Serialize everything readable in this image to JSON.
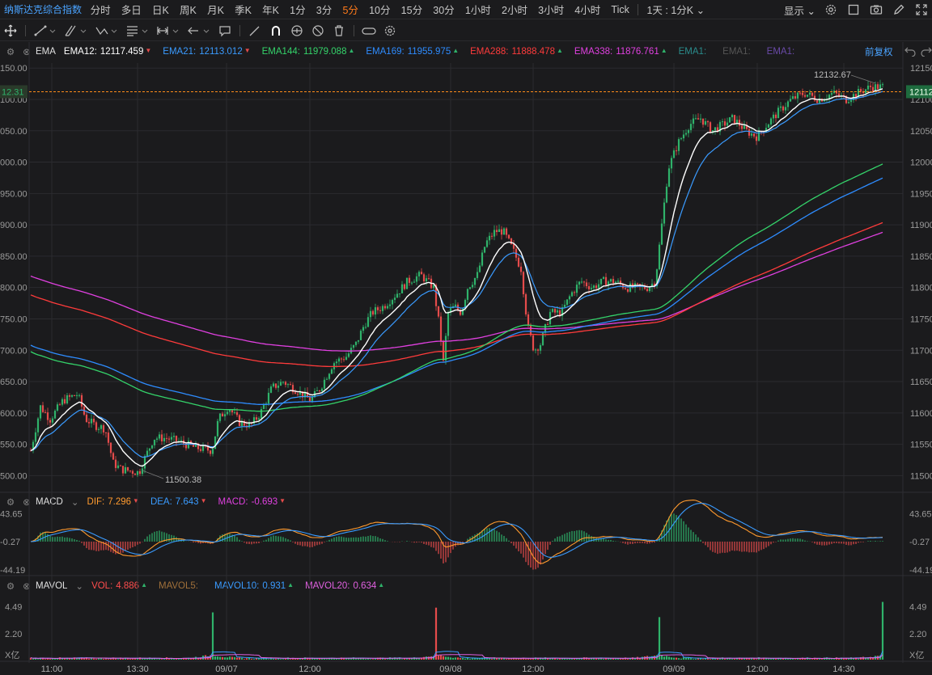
{
  "header": {
    "symbol": "纳斯达克综合指数",
    "periods": [
      "分时",
      "多日",
      "日K",
      "周K",
      "月K",
      "季K",
      "年K",
      "1分",
      "3分",
      "5分",
      "10分",
      "15分",
      "30分",
      "1小时",
      "2小时",
      "3小时",
      "4小时",
      "Tick"
    ],
    "active_period": "5分",
    "period_select": "1天 : 1分K",
    "show_label": "显示",
    "icons": [
      "gear-icon",
      "square-icon",
      "camera-icon",
      "pencil-icon",
      "fullscreen-icon"
    ]
  },
  "toolbar": {
    "tools": [
      "crosshair-icon",
      "line-tool-icon",
      "channel-tool-icon",
      "pattern-tool-icon",
      "text-tool-icon",
      "measure-tool-icon",
      "arrow-tool-icon",
      "comment-icon",
      "brush-icon",
      "magnet-icon",
      "eye-icon",
      "hide-icon",
      "trash-icon",
      "link-icon",
      "settings-icon"
    ]
  },
  "main_legend": {
    "indicator": "EMA",
    "items": [
      {
        "label": "EMA12:",
        "value": "12117.459",
        "color": "#ffffff",
        "dir": "down"
      },
      {
        "label": "EMA21:",
        "value": "12113.012",
        "color": "#3a9bff",
        "dir": "down"
      },
      {
        "label": "EMA144:",
        "value": "11979.088",
        "color": "#34d36a",
        "dir": "up"
      },
      {
        "label": "EMA169:",
        "value": "11955.975",
        "color": "#2e8cff",
        "dir": "up"
      },
      {
        "label": "EMA288:",
        "value": "11888.478",
        "color": "#ff3b3b",
        "dir": "up"
      },
      {
        "label": "EMA338:",
        "value": "11876.761",
        "color": "#e040e0",
        "dir": "up"
      }
    ],
    "extra": [
      {
        "label": "EMA1:",
        "color": "#2a8c8c"
      },
      {
        "label": "EMA1:",
        "color": "#555555"
      },
      {
        "label": "EMA1:",
        "color": "#6a4aa8"
      }
    ],
    "adjust_label": "前复权"
  },
  "price_axis": {
    "ticks": [
      "12150.00",
      "12100.00",
      "12050.00",
      "12000.00",
      "11950.00",
      "11900.00",
      "11850.00",
      "11800.00",
      "11750.00",
      "11700.00",
      "11650.00",
      "11600.00",
      "11550.00",
      "11500.00"
    ],
    "current_price": "12112.31",
    "high_label": "12132.67",
    "low_label": "11500.38"
  },
  "macd_legend": {
    "indicator": "MACD",
    "items": [
      {
        "label": "DIF:",
        "value": "7.296",
        "color": "#ff9a2e",
        "dir": "down"
      },
      {
        "label": "DEA:",
        "value": "7.643",
        "color": "#3a9bff",
        "dir": "down"
      },
      {
        "label": "MACD:",
        "value": "-0.693",
        "color": "#e040e0",
        "dir": "down"
      }
    ],
    "ticks": [
      "43.65",
      "-0.27",
      "-44.19"
    ]
  },
  "vol_legend": {
    "indicator": "MAVOL",
    "items": [
      {
        "label": "VOL:",
        "value": "4.886",
        "color": "#ff4d4d",
        "dir": "up"
      },
      {
        "label": "MAVOL5:",
        "value": "",
        "color": "#a0703a",
        "dir": ""
      },
      {
        "label": "MAVOL10:",
        "value": "0.931",
        "color": "#3a9bff",
        "dir": "up"
      },
      {
        "label": "MAVOL20:",
        "value": "0.634",
        "color": "#e060e0",
        "dir": "up"
      }
    ],
    "ticks": [
      "4.49",
      "2.20",
      "X亿"
    ]
  },
  "time_axis": [
    "11:00",
    "13:30",
    "09/07",
    "12:00",
    "09/08",
    "12:00",
    "09/09",
    "12:00",
    "14:30"
  ],
  "colors": {
    "up": "#2fb26a",
    "down": "#e54b4b",
    "bg": "#1b1b1d",
    "grid": "#2b2b2f"
  }
}
